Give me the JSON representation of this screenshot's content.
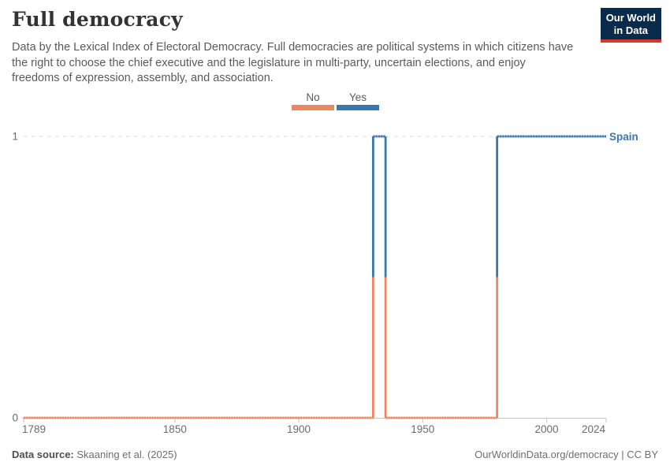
{
  "header": {
    "title": "Full democracy",
    "subtitle_lines": [
      "Data by the Lexical Index of Electoral Democracy. Full democracies are political systems in which citizens have",
      "the right to choose the chief executive and the legislature in multi-party, uncertain elections, and enjoy",
      "freedoms of expression, assembly, and association."
    ],
    "logo": {
      "line1": "Our World",
      "line2": "in Data"
    }
  },
  "legend": {
    "items": [
      {
        "label": "No",
        "color": "#EE8662"
      },
      {
        "label": "Yes",
        "color": "#3978AF"
      }
    ]
  },
  "chart_data": {
    "type": "line",
    "title": "Full democracy",
    "entity": "Spain",
    "entity_label_color": "#3978AF",
    "xlim": [
      1789,
      2024
    ],
    "ylim": [
      0,
      1
    ],
    "x_ticks": [
      1789,
      1850,
      1900,
      1950,
      2000,
      2024
    ],
    "y_ticks": [
      0,
      1
    ],
    "grid": "dashed horizontal gridline at y=1, solid axis line at y=0",
    "legend_position": "top-center",
    "categories": {
      "No": "#EE8662",
      "Yes": "#3978AF"
    },
    "series": [
      {
        "name": "Spain",
        "step_segments": [
          {
            "from_year": 1789,
            "to_year": 1930,
            "value": 0,
            "category": "No"
          },
          {
            "from_year": 1930,
            "to_year": 1935,
            "value": 1,
            "category": "Yes"
          },
          {
            "from_year": 1935,
            "to_year": 1980,
            "value": 0,
            "category": "No"
          },
          {
            "from_year": 1980,
            "to_year": 2024,
            "value": 1,
            "category": "Yes"
          }
        ]
      }
    ]
  },
  "footer": {
    "source_label": "Data source:",
    "source_value": " Skaaning et al. (2025)",
    "credit": "OurWorldinData.org/democracy | CC BY"
  },
  "palette": {
    "no": "#EE8662",
    "yes": "#3978AF",
    "logo_bg": "#0B2B4D",
    "logo_accent": "#D8352B"
  }
}
